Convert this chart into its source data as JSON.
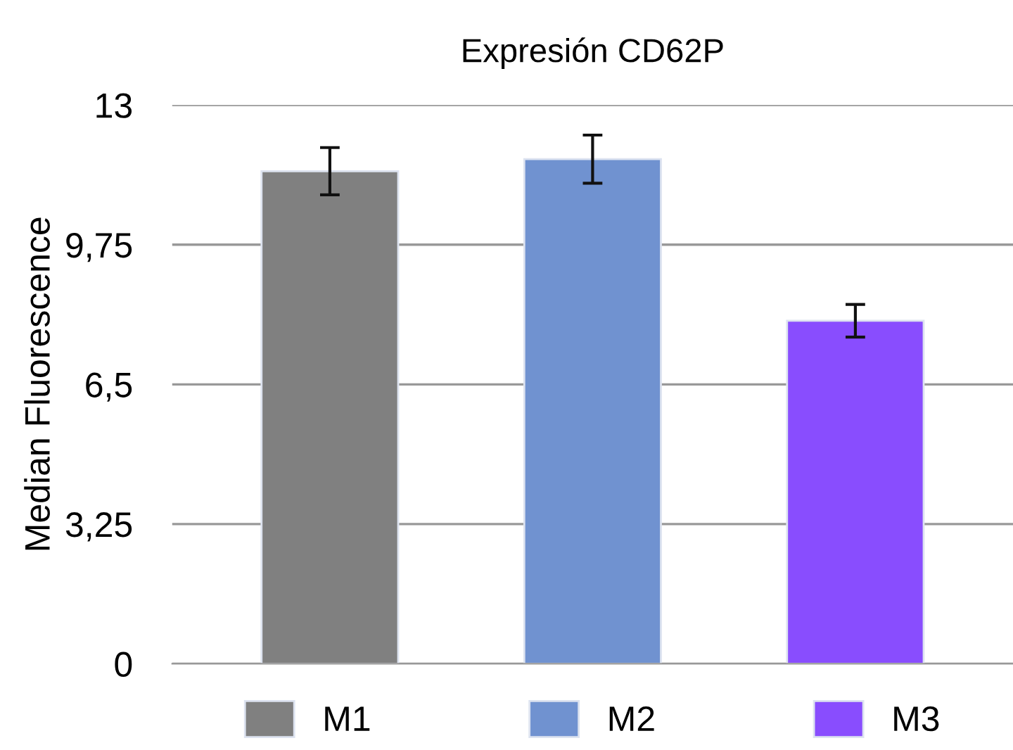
{
  "chart_data": {
    "type": "bar",
    "title": "Expresión CD62P",
    "ylabel": "Median Fluorescence",
    "categories": [
      null,
      null,
      null
    ],
    "series": [
      {
        "name": "M1",
        "color": "#808080",
        "values": [
          11.46,
          null,
          null
        ],
        "errors": [
          0.55,
          null,
          null
        ]
      },
      {
        "name": "M2",
        "color": "#7092d0",
        "values": [
          null,
          11.74,
          null
        ],
        "errors": [
          null,
          0.56,
          null
        ]
      },
      {
        "name": "M3",
        "color": "#894dfe",
        "values": [
          null,
          null,
          7.98
        ],
        "errors": [
          null,
          null,
          0.38
        ]
      }
    ],
    "ylim": [
      0,
      13
    ],
    "yticks": [
      0,
      {
        "value": 3.25,
        "label": "3,25"
      },
      {
        "value": 6.5,
        "label": "6,5"
      },
      {
        "value": 9.75,
        "label": "9,75"
      },
      13
    ],
    "grid": "y",
    "legend": "bottom"
  }
}
